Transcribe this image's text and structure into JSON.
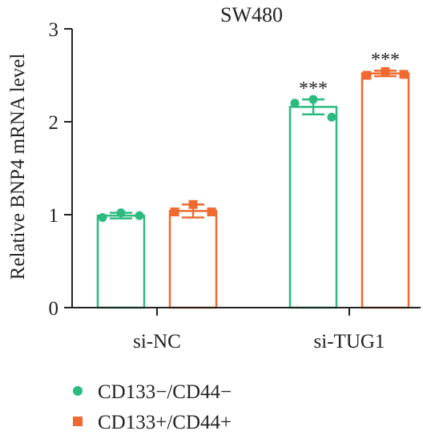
{
  "chart_data": {
    "type": "bar",
    "title": "SW480",
    "xlabel": "",
    "ylabel": "Relative BNP4 mRNA level",
    "ylim": [
      0,
      3
    ],
    "yticks": [
      "0",
      "1",
      "2",
      "3"
    ],
    "grid": false,
    "legend_position": "bottom-left",
    "categories": [
      "si-NC",
      "si-TUG1"
    ],
    "significance": [
      "",
      "***"
    ],
    "series": [
      {
        "name": "CD133−/CD44−",
        "color": "#2bbb7f",
        "marker": "circle",
        "values": [
          0.99,
          2.16
        ],
        "error": [
          0.03,
          0.08
        ],
        "points": [
          [
            0.97,
            1.02,
            0.99
          ],
          [
            2.2,
            2.24,
            2.05
          ]
        ]
      },
      {
        "name": "CD133+/CD44+",
        "color": "#f06a30",
        "marker": "square",
        "values": [
          1.04,
          2.52
        ],
        "error": [
          0.07,
          0.03
        ],
        "points": [
          [
            1.03,
            1.11,
            1.03
          ],
          [
            2.5,
            2.54,
            2.51
          ]
        ]
      }
    ]
  }
}
